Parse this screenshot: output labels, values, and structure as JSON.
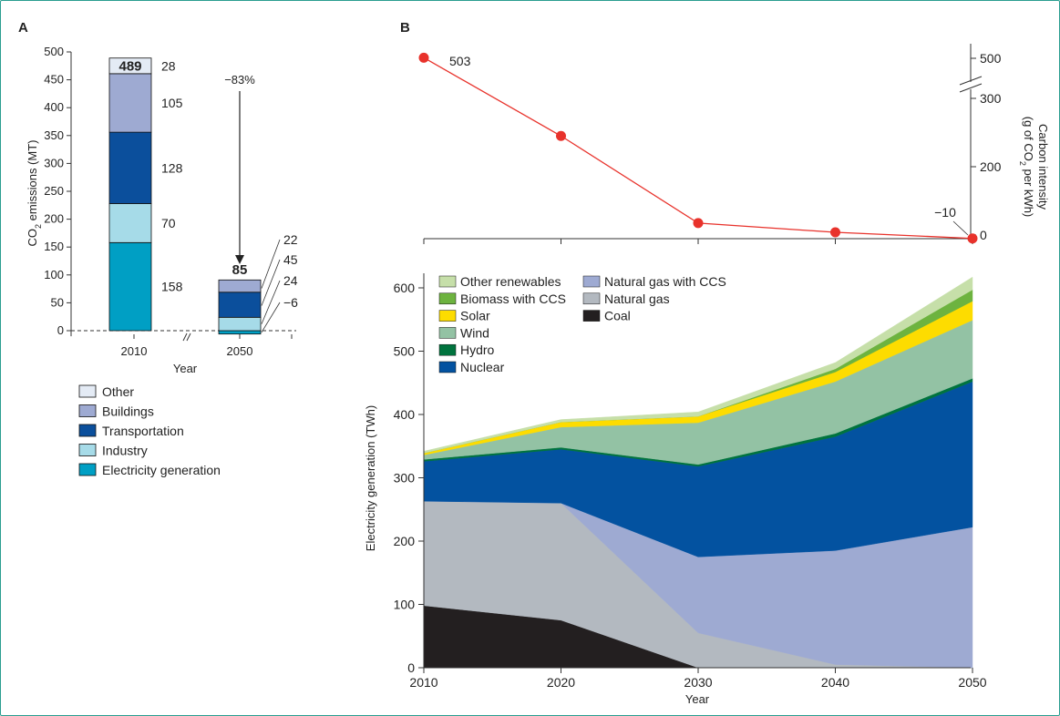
{
  "colors": {
    "other": "#e4ebf5",
    "buildings": "#9eaad2",
    "transportation": "#0b4f9c",
    "industry": "#a6dbe8",
    "electricity_generation": "#009fc4",
    "coal": "#231f20",
    "natural_gas": "#b3b9c0",
    "natural_gas_ccs": "#9eaad2",
    "nuclear": "#0352a0",
    "hydro": "#00733e",
    "wind": "#93c2a4",
    "solar": "#fddc00",
    "biomass_ccs": "#6db33f",
    "other_renewables": "#c6dfa9",
    "intensity_line": "#e8322b",
    "frame": "#2a9d8f"
  },
  "chart_data": [
    {
      "panel": "A",
      "type": "bar",
      "stacked": true,
      "categories": [
        "2010",
        "2050"
      ],
      "xlabel": "Year",
      "ylabel_main": "CO",
      "ylabel_sub": "2",
      "ylabel_rest": " emissions (MT)",
      "ylim": [
        -10,
        500
      ],
      "yticks": [
        0,
        50,
        100,
        150,
        200,
        250,
        300,
        350,
        400,
        450,
        500
      ],
      "series": [
        {
          "name": "Electricity generation",
          "key": "electricity_generation",
          "values": [
            158,
            -6
          ]
        },
        {
          "name": "Industry",
          "key": "industry",
          "values": [
            70,
            24
          ]
        },
        {
          "name": "Transportation",
          "key": "transportation",
          "values": [
            128,
            45
          ]
        },
        {
          "name": "Buildings",
          "key": "buildings",
          "values": [
            105,
            22
          ]
        },
        {
          "name": "Other",
          "key": "other",
          "values": [
            28,
            0
          ]
        }
      ],
      "totals": [
        "489",
        "85"
      ],
      "labels_2010": [
        "158",
        "70",
        "128",
        "105",
        "28"
      ],
      "labels_2050": [
        "22",
        "45",
        "24",
        "−6"
      ],
      "change_label": "−83%",
      "legend": [
        "Other",
        "Buildings",
        "Transportation",
        "Industry",
        "Electricity generation"
      ],
      "legend_keys": [
        "other",
        "buildings",
        "transportation",
        "industry",
        "electricity_generation"
      ]
    },
    {
      "panel": "B",
      "type": "line",
      "x": [
        2010,
        2020,
        2030,
        2040,
        2050
      ],
      "values": [
        503,
        290,
        35,
        8,
        -10
      ],
      "point_labels": [
        "503",
        "",
        "",
        "",
        "−10"
      ],
      "ylabel_line1": "Carbon intensity",
      "ylabel_line2_a": "(g of CO",
      "ylabel_line2_sub": "2",
      "ylabel_line2_b": " per kWh)",
      "ytick_labels": [
        "0",
        "200",
        "300",
        "500"
      ],
      "yaxis_break": true
    },
    {
      "panel": "B",
      "type": "area",
      "stacked": true,
      "x": [
        2010,
        2020,
        2030,
        2040,
        2050
      ],
      "xlabel": "Year",
      "ylabel": "Electricity generation (TWh)",
      "ylim": [
        0,
        620
      ],
      "yticks": [
        0,
        100,
        200,
        300,
        400,
        500,
        600
      ],
      "series": [
        {
          "name": "Coal",
          "key": "coal",
          "values": [
            98,
            75,
            0,
            0,
            0
          ]
        },
        {
          "name": "Natural gas",
          "key": "natural_gas",
          "values": [
            165,
            185,
            55,
            5,
            0
          ]
        },
        {
          "name": "Natural gas with CCS",
          "key": "natural_gas_ccs",
          "values": [
            0,
            0,
            120,
            180,
            222
          ]
        },
        {
          "name": "Nuclear",
          "key": "nuclear",
          "values": [
            63,
            85,
            143,
            180,
            230
          ]
        },
        {
          "name": "Hydro",
          "key": "hydro",
          "values": [
            3,
            3,
            3,
            5,
            5
          ]
        },
        {
          "name": "Wind",
          "key": "wind",
          "values": [
            7,
            32,
            66,
            82,
            92
          ]
        },
        {
          "name": "Solar",
          "key": "solar",
          "values": [
            3,
            8,
            10,
            15,
            30
          ]
        },
        {
          "name": "Biomass with CCS",
          "key": "biomass_ccs",
          "values": [
            0,
            0,
            0,
            5,
            18
          ]
        },
        {
          "name": "Other renewables",
          "key": "other_renewables",
          "values": [
            3,
            4,
            7,
            10,
            20
          ]
        }
      ],
      "legend_col1": [
        "Other renewables",
        "Biomass with CCS",
        "Solar",
        "Wind",
        "Hydro",
        "Nuclear"
      ],
      "legend_col1_keys": [
        "other_renewables",
        "biomass_ccs",
        "solar",
        "wind",
        "hydro",
        "nuclear"
      ],
      "legend_col2": [
        "Natural gas with CCS",
        "Natural gas",
        "Coal"
      ],
      "legend_col2_keys": [
        "natural_gas_ccs",
        "natural_gas",
        "coal"
      ]
    }
  ],
  "panel_labels": {
    "a": "A",
    "b": "B"
  }
}
